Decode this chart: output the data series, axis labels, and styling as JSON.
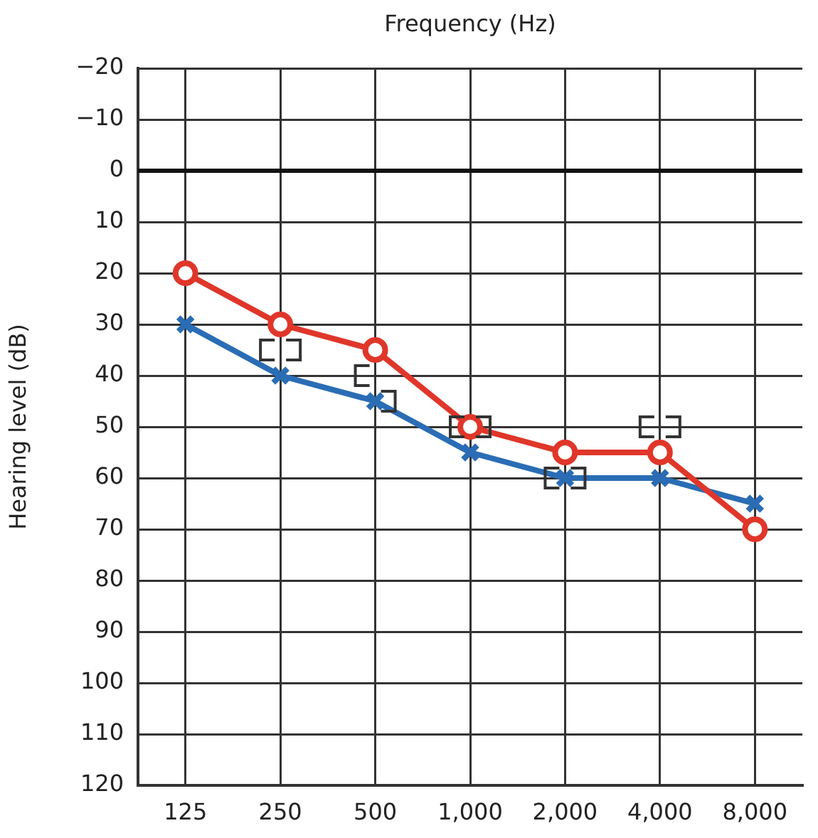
{
  "chart_data": {
    "type": "line",
    "xlabel": "Frequency (Hz)",
    "ylabel": "Hearing level (dB)",
    "categories": [
      "125",
      "250",
      "500",
      "1,000",
      "2,000",
      "4,000",
      "8,000"
    ],
    "series": [
      {
        "color": "#e0362a",
        "marker": "circle",
        "values": [
          20,
          30,
          35,
          50,
          55,
          55,
          70
        ]
      },
      {
        "color": "#2a6db5",
        "marker": "cross",
        "values": [
          30,
          40,
          45,
          55,
          60,
          60,
          65
        ]
      },
      {
        "type": "scatter",
        "color": "#333333",
        "values": [
          null,
          35,
          40,
          50,
          60,
          50,
          null
        ]
      },
      {
        "type": "scatter",
        "color": "#333333",
        "values": [
          null,
          35,
          45,
          50,
          60,
          50,
          null
        ]
      }
    ],
    "ylim": [
      120,
      -20
    ],
    "yticks": [
      -20,
      -10,
      0,
      10,
      20,
      30,
      40,
      50,
      60,
      70,
      80,
      90,
      100,
      110,
      120
    ],
    "ref_lines": [
      {
        "axis": "y",
        "value": 0,
        "color": "#111111"
      }
    ],
    "grid": true,
    "legend": false
  }
}
